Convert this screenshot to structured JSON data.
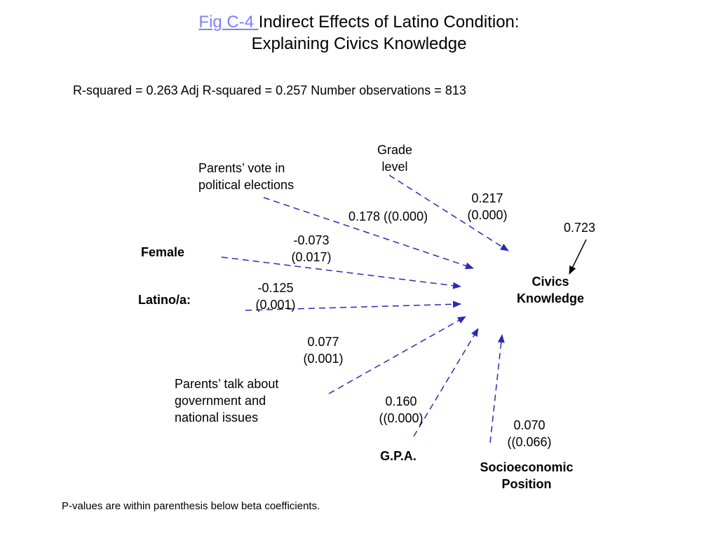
{
  "title": {
    "link": "Fig C-4 ",
    "line1": "Indirect Effects of Latino Condition:",
    "line2": "Explaining Civics Knowledge"
  },
  "stats": "R-squared = 0.263   Adj R-squared = 0.257   Number observations = 813",
  "nodes": {
    "grade": [
      "Grade",
      "level"
    ],
    "vote": [
      "Parents’ vote in",
      "political elections"
    ],
    "female": "Female",
    "latino": "Latino/a:",
    "talk": [
      "Parents’ talk about",
      "government and",
      "national issues"
    ],
    "gpa": "G.P.A.",
    "ses": [
      "Socioeconomic",
      "Position"
    ],
    "civics": [
      "Civics",
      "Knowledge"
    ]
  },
  "coefficients": {
    "grade": [
      "0.217",
      "(0.000)"
    ],
    "vote": "0.178 ((0.000)",
    "female": [
      "-0.073",
      "(0.017)"
    ],
    "latino": [
      "-0.125",
      "(0.001)"
    ],
    "talk": [
      "0.077",
      "(0.001)"
    ],
    "gpa": [
      "0.160",
      "((0.000)"
    ],
    "ses": [
      "0.070",
      "((0.066)"
    ],
    "residual": "0.723"
  },
  "note": "P-values are within parenthesis below beta coefficients.",
  "colors": {
    "arrow": "#2a2ab8",
    "link": "#7f7fff",
    "residual_arrow": "#000000"
  }
}
